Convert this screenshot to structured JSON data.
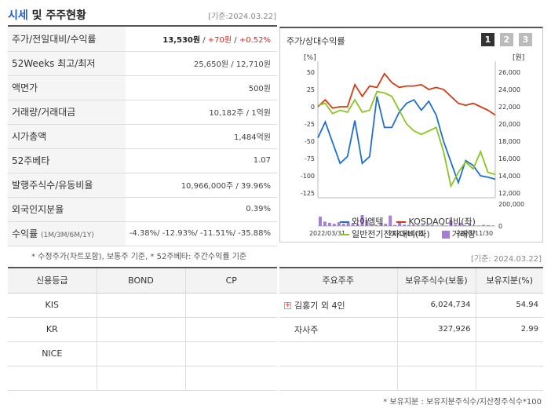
{
  "header": {
    "title_accent": "시세",
    "title_rest": " 및 주주현황",
    "date": "[기준:2024.03.22]"
  },
  "quote": {
    "price_label": "주가/전일대비/수익률",
    "price": "13,530원",
    "sep": " / ",
    "change": "+70원",
    "change_pct": "+0.52%",
    "w52_label": "52Weeks 최고/최저",
    "w52_value": "25,650원 / 12,710원",
    "par_label": "액면가",
    "par_value": "500원",
    "volume_label": "거래량/거래대금",
    "volume_value": "10,182주 / 1억원",
    "mcap_label": "시가총액",
    "mcap_value": "1,484억원",
    "beta_label": "52주베타",
    "beta_value": "1.07",
    "shares_label": "발행주식수/유동비율",
    "shares_value": "10,966,000주 / 39.96%",
    "foreign_label": "외국인지분율",
    "foreign_value": "0.39%",
    "return_label": "수익률",
    "return_periods": "(1M/3M/6M/1Y)",
    "return_value": "-4.38%/ -12.93%/ -11.51%/ -35.88%"
  },
  "note1": "* 수정주가(차트포함), 보통주 기준, * 52주베타: 주간수익률 기준",
  "chart_panel": {
    "title": "주가/상대수익률",
    "pages": [
      "1",
      "2",
      "3"
    ]
  },
  "chart_data": {
    "type": "line",
    "left_axis_unit": "[%]",
    "right_axis_unit": "[원]",
    "ylim_left": [
      -125,
      50
    ],
    "yticks_left": [
      50,
      25,
      0,
      -25,
      -50,
      -75,
      -100,
      -125
    ],
    "ylim_right": [
      12000,
      26000
    ],
    "yticks_right": [
      "26,000",
      "24,000",
      "22,000",
      "20,000",
      "18,000",
      "16,000",
      "14,000",
      "12,000"
    ],
    "volume_ticks": [
      "200,000",
      "0"
    ],
    "x_labels": [
      "2022/03/31",
      "2023/01/31",
      "2023/11/30"
    ],
    "series": [
      {
        "name": "와이엠텍",
        "color": "#1f6fd0",
        "values": [
          -45,
          -22,
          -52,
          -82,
          -72,
          -20,
          -82,
          -72,
          15,
          -30,
          -30,
          -8,
          5,
          10,
          -5,
          8,
          -12,
          -50,
          -80,
          -110,
          -78,
          -85,
          -100,
          -102,
          -105
        ]
      },
      {
        "name": "KOSDAQ대비(좌)",
        "color": "#d23b14",
        "values": [
          0,
          10,
          -2,
          0,
          0,
          32,
          15,
          30,
          28,
          48,
          35,
          28,
          30,
          30,
          32,
          25,
          28,
          25,
          15,
          5,
          2,
          5,
          0,
          -5,
          -12
        ]
      },
      {
        "name": "일반전기전자대비(좌)",
        "color": "#8ac520",
        "values": [
          2,
          5,
          -10,
          -5,
          -8,
          10,
          -8,
          -5,
          22,
          20,
          15,
          -5,
          -25,
          -35,
          -40,
          -35,
          -30,
          -65,
          -115,
          -95,
          -80,
          -90,
          -65,
          -95,
          -98
        ]
      }
    ],
    "volume": {
      "name": "거래량",
      "color": "#a47fd4",
      "values": [
        85000,
        40000,
        30000,
        20000,
        35000,
        20000,
        30000,
        20000,
        15000,
        100000,
        55000,
        10000,
        10000,
        30000,
        20000,
        95000,
        10000,
        45000,
        12000,
        10000,
        12000,
        10000,
        10000,
        10000,
        10000,
        5000,
        5000,
        5000,
        45000,
        15000,
        30000,
        10000,
        20000,
        5000,
        5000,
        10000,
        8000,
        5000
      ]
    }
  },
  "date2": "[기준: 2024.03.22]",
  "credit": {
    "headers": [
      "신용등급",
      "BOND",
      "CP"
    ],
    "rows": [
      [
        "KIS",
        "",
        ""
      ],
      [
        "KR",
        "",
        ""
      ],
      [
        "NICE",
        "",
        ""
      ]
    ]
  },
  "holders": {
    "headers": [
      "주요주주",
      "보유주식수(보통)",
      "보유지분(%)"
    ],
    "rows": [
      {
        "name": "김홍기 외 4인",
        "shares": "6,024,734",
        "pct": "54.94"
      },
      {
        "name": "자사주",
        "shares": "327,926",
        "pct": "2.99"
      }
    ]
  },
  "note2": "* 보유지분 : 보유지분주식수/지산정주식수*100"
}
